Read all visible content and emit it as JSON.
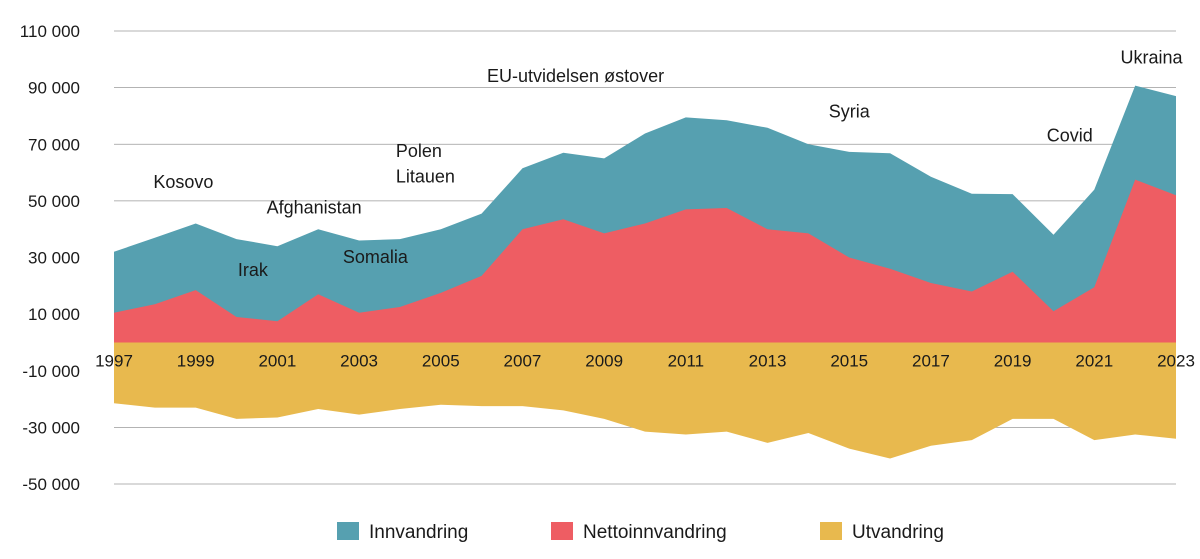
{
  "chart_data": {
    "type": "area",
    "title": "",
    "xlabel": "",
    "ylabel": "",
    "ylim": [
      -55000,
      115000
    ],
    "grid": true,
    "legend_position": "bottom",
    "x": [
      1997,
      1998,
      1999,
      2000,
      2001,
      2002,
      2003,
      2004,
      2005,
      2006,
      2007,
      2008,
      2009,
      2010,
      2011,
      2012,
      2013,
      2014,
      2015,
      2016,
      2017,
      2018,
      2019,
      2020,
      2021,
      2022,
      2023
    ],
    "x_tick_labels": [
      "1997",
      "1999",
      "2001",
      "2003",
      "2005",
      "2007",
      "2009",
      "2011",
      "2013",
      "2015",
      "2017",
      "2019",
      "2021",
      "2023"
    ],
    "y_tick_values": [
      110000,
      90000,
      70000,
      50000,
      30000,
      10000,
      -10000,
      -30000,
      -50000
    ],
    "y_tick_labels": [
      "110 000",
      "90 000",
      "70 000",
      "50 000",
      "30 000",
      "10 000",
      "-10 000",
      "-30 000",
      "-50 000"
    ],
    "series": [
      {
        "name": "Innvandring",
        "color": "#56a0b0",
        "values": [
          32000,
          37000,
          42000,
          36500,
          34000,
          40000,
          36000,
          36500,
          40000,
          45500,
          61500,
          67000,
          65000,
          73800,
          79500,
          78500,
          75800,
          70000,
          67300,
          66800,
          58500,
          52500,
          52400,
          38000,
          54000,
          90700,
          87000
        ]
      },
      {
        "name": "Nettoinnvandring",
        "color": "#ee5d63",
        "values": [
          10500,
          13500,
          18500,
          9000,
          7500,
          17000,
          10500,
          12500,
          17500,
          23500,
          40000,
          43500,
          38500,
          42000,
          47000,
          47500,
          40000,
          38500,
          30000,
          26000,
          21000,
          18000,
          25000,
          11000,
          19500,
          57500,
          52000
        ]
      },
      {
        "name": "Utvandring",
        "color": "#e8b94e",
        "values": [
          -21500,
          -23000,
          -23000,
          -27000,
          -26500,
          -23500,
          -25500,
          -23500,
          -22000,
          -22500,
          -22500,
          -24000,
          -27000,
          -31500,
          -32500,
          -31500,
          -35500,
          -32000,
          -37500,
          -41000,
          -36500,
          -34500,
          -27000,
          -27000,
          -34500,
          -32500,
          -34000
        ]
      }
    ],
    "annotations": [
      {
        "text": "Kosovo",
        "x": 1998.7,
        "y": 54500,
        "anchor": "middle"
      },
      {
        "text": "Irak",
        "x": 2000.4,
        "y": 23500,
        "anchor": "middle"
      },
      {
        "text": "Afghanistan",
        "x": 2001.9,
        "y": 45500,
        "anchor": "middle"
      },
      {
        "text": "Somalia",
        "x": 2003.4,
        "y": 28000,
        "anchor": "middle"
      },
      {
        "text": "Polen",
        "x": 2003.9,
        "y": 65500,
        "anchor": "start"
      },
      {
        "text": "Litauen",
        "x": 2003.9,
        "y": 56500,
        "anchor": "start"
      },
      {
        "text": "EU-utvidelsen østover",
        "x": 2008.3,
        "y": 92000,
        "anchor": "middle"
      },
      {
        "text": "Syria",
        "x": 2015.0,
        "y": 79500,
        "anchor": "middle"
      },
      {
        "text": "Covid",
        "x": 2020.4,
        "y": 71000,
        "anchor": "middle"
      },
      {
        "text": "Ukraina",
        "x": 2022.4,
        "y": 98500,
        "anchor": "middle"
      }
    ],
    "legend": [
      "Innvandring",
      "Nettoinnvandring",
      "Utvandring"
    ]
  }
}
